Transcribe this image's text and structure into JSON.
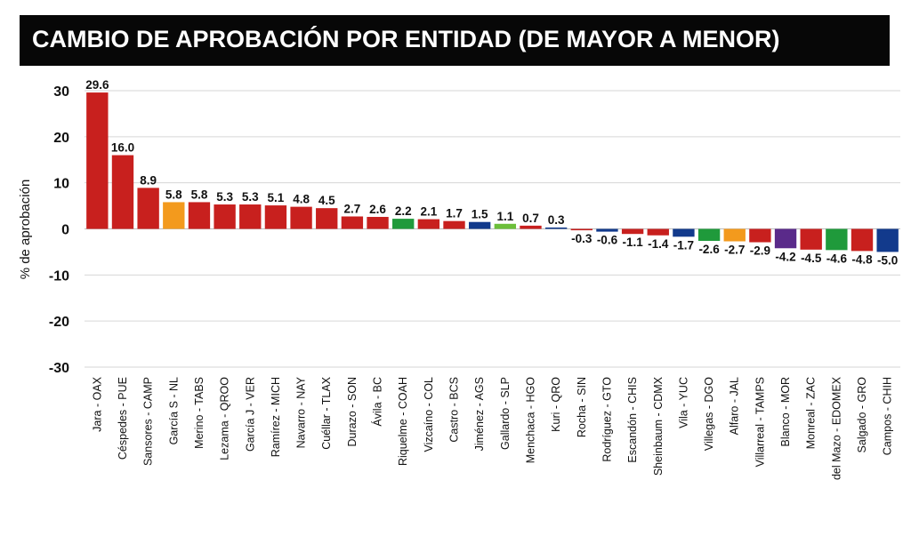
{
  "title": "CAMBIO DE APROBACIÓN POR ENTIDAD (DE MAYOR A MENOR)",
  "chart_data": {
    "type": "bar",
    "ylabel": "% de aprobación",
    "xlabel": "",
    "ylim": [
      -30,
      30
    ],
    "yticks": [
      30,
      20,
      10,
      0,
      -10,
      -20,
      -30
    ],
    "grid": true,
    "legend": "none",
    "colors": {
      "red": "#c8201e",
      "orange": "#f39a1d",
      "green": "#1f9a3b",
      "navy": "#123a8c",
      "purple": "#5a2a8a",
      "lightgreen": "#6cbf3a"
    },
    "categories": [
      "Jara - OAX",
      "Céspedes - PUE",
      "Sansores - CAMP",
      "García S - NL",
      "Merino - TABS",
      "Lezama - QROO",
      "García J - VER",
      "Ramírez - MICH",
      "Navarro - NAY",
      "Cuéllar - TLAX",
      "Durazo - SON",
      "Ávila - BC",
      "Riquelme - COAH",
      "Vizcaíno - COL",
      "Castro - BCS",
      "Jiménez - AGS",
      "Gallardo - SLP",
      "Menchaca - HGO",
      "Kuri - QRO",
      "Rocha - SIN",
      "Rodríguez - GTO",
      "Escandón - CHIS",
      "Sheinbaum - CDMX",
      "Vila - YUC",
      "Villegas - DGO",
      "Alfaro - JAL",
      "Villarreal - TAMPS",
      "Blanco - MOR",
      "Monreal - ZAC",
      "del Mazo - EDOMEX",
      "Salgado - GRO",
      "Campos - CHIH"
    ],
    "values": [
      29.6,
      16.0,
      8.9,
      5.8,
      5.8,
      5.3,
      5.3,
      5.1,
      4.8,
      4.5,
      2.7,
      2.6,
      2.2,
      2.1,
      1.7,
      1.5,
      1.1,
      0.7,
      0.3,
      -0.3,
      -0.6,
      -1.1,
      -1.4,
      -1.7,
      -2.6,
      -2.7,
      -2.9,
      -4.2,
      -4.5,
      -4.6,
      -4.8,
      -5.0
    ],
    "labels": [
      "29.6",
      "16.0",
      "8.9",
      "5.8",
      "5.8",
      "5.3",
      "5.3",
      "5.1",
      "4.8",
      "4.5",
      "2.7",
      "2.6",
      "2.2",
      "2.1",
      "1.7",
      "1.5",
      "1.1",
      "0.7",
      "0.3",
      "-0.3",
      "-0.6",
      "-1.1",
      "-1.4",
      "-1.7",
      "-2.6",
      "-2.7",
      "-2.9",
      "-4.2",
      "-4.5",
      "-4.6",
      "-4.8",
      "-5.0"
    ],
    "bar_colors": [
      "red",
      "red",
      "red",
      "orange",
      "red",
      "red",
      "red",
      "red",
      "red",
      "red",
      "red",
      "red",
      "green",
      "red",
      "red",
      "navy",
      "lightgreen",
      "red",
      "navy",
      "red",
      "navy",
      "red",
      "red",
      "navy",
      "green",
      "orange",
      "red",
      "purple",
      "red",
      "green",
      "red",
      "navy"
    ]
  }
}
